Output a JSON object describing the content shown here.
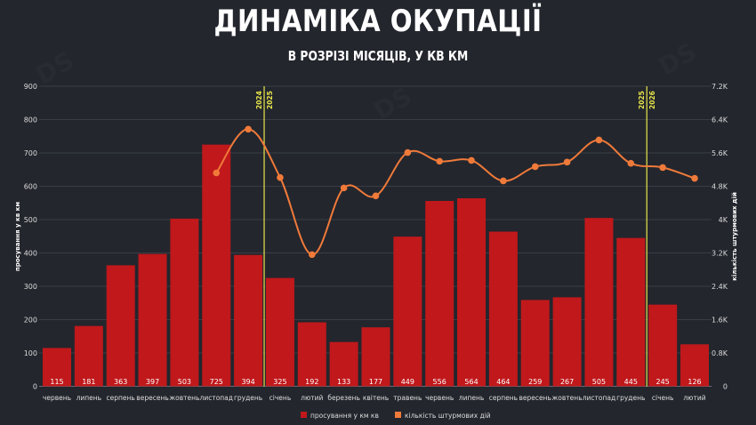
{
  "header": {
    "title": "ДИНАМІКА ОКУПАЦІЇ",
    "subtitle": "В РОЗРІЗІ МІСЯЦІВ, У КВ КМ"
  },
  "colors": {
    "background": "#23262d",
    "bar": "#c0181b",
    "line": "#f07a3a",
    "divider": "#e8e64a",
    "grid": "#3a3d45",
    "text": "#dcdcdc"
  },
  "chart_data": {
    "type": "bar",
    "title": "ДИНАМІКА ОКУПАЦІЇ",
    "subtitle": "В РОЗРІЗІ МІСЯЦІВ, У КВ КМ",
    "categories": [
      "червень",
      "липень",
      "серпень",
      "вересень",
      "жовтень",
      "листопад",
      "грудень",
      "січень",
      "лютий",
      "березень",
      "квітень",
      "травень",
      "червень",
      "липень",
      "серпень",
      "вересень",
      "жовтень",
      "листопад",
      "грудень",
      "січень",
      "лютий"
    ],
    "series": [
      {
        "name": "просування у км кв",
        "type": "bar",
        "axis": "left",
        "values": [
          115,
          181,
          363,
          397,
          503,
          725,
          394,
          325,
          192,
          133,
          177,
          449,
          556,
          564,
          464,
          259,
          267,
          505,
          445,
          245,
          126
        ]
      },
      {
        "name": "кількість штурмових дій",
        "type": "line",
        "axis": "right",
        "values": [
          null,
          null,
          null,
          null,
          null,
          5120,
          6170,
          5010,
          3160,
          4760,
          4570,
          5610,
          5400,
          5420,
          4930,
          5270,
          5380,
          5910,
          5350,
          5250,
          4990
        ]
      }
    ],
    "ylabel": "просування у кв км",
    "y2label": "кількість штурмових дій",
    "ylim": [
      0,
      900
    ],
    "y2lim": [
      0,
      7200
    ],
    "yticks": [
      "0",
      "100",
      "200",
      "300",
      "400",
      "500",
      "600",
      "700",
      "800",
      "900"
    ],
    "y2ticks": [
      "0",
      "0.8K",
      "1.6K",
      "2.4K",
      "3.2K",
      "4K",
      "4.8K",
      "5.6K",
      "6.4K",
      "7.2K"
    ],
    "annotations": [
      {
        "type": "vline",
        "between": [
          "грудень",
          "січень"
        ],
        "index": 6.5,
        "labels": [
          "2024",
          "2025"
        ]
      },
      {
        "type": "vline",
        "between": [
          "грудень",
          "січень"
        ],
        "index": 18.5,
        "labels": [
          "2025",
          "2026"
        ]
      }
    ],
    "grid": true,
    "legend_position": "bottom"
  },
  "legend": [
    {
      "label": "просування у км кв",
      "color": "#c0181b"
    },
    {
      "label": "кількість штурмових дій",
      "color": "#f07a3a"
    }
  ]
}
